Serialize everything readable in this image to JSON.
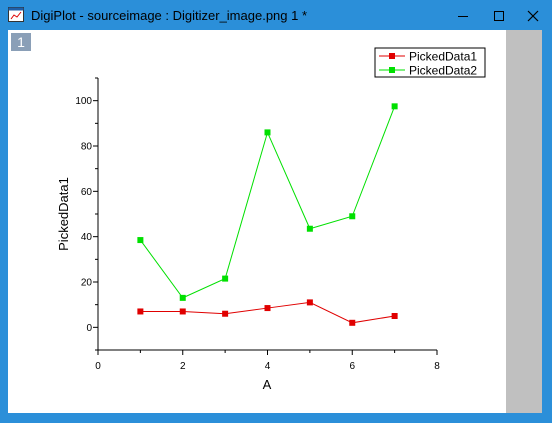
{
  "window": {
    "title": "DigiPlot - sourceimage : Digitizer_image.png 1 *",
    "icon": "graph-window-icon",
    "controls": [
      "minimize-icon",
      "maximize-icon",
      "close-icon"
    ],
    "accent_color": "#2b8fd9"
  },
  "layer_badge": "1",
  "chart_data": {
    "type": "line",
    "xlabel": "A",
    "ylabel": "PickedData1",
    "xlim": [
      0,
      8
    ],
    "ylim": [
      -10,
      110
    ],
    "x_ticks": [
      "0",
      "2",
      "4",
      "6",
      "8"
    ],
    "y_ticks": [
      "0",
      "20",
      "40",
      "60",
      "80",
      "100"
    ],
    "legend_position": "top-right",
    "grid": false,
    "series": [
      {
        "name": "PickedData1",
        "color": "#e00000",
        "marker": "square",
        "x": [
          1,
          2,
          3,
          4,
          5,
          6,
          7
        ],
        "y": [
          7,
          7,
          6,
          8.5,
          11,
          2,
          5
        ]
      },
      {
        "name": "PickedData2",
        "color": "#00e000",
        "marker": "square",
        "x": [
          1,
          2,
          3,
          4,
          5,
          6,
          7
        ],
        "y": [
          38.5,
          13,
          21.5,
          86,
          43.5,
          49,
          97.5
        ]
      }
    ]
  }
}
